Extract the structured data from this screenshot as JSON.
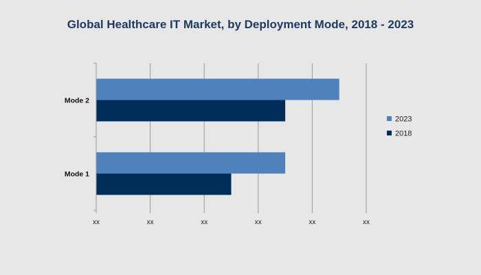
{
  "chart_data": {
    "type": "bar",
    "orientation": "horizontal",
    "title": "Global Healthcare IT Market, by Deployment Mode, 2018 - 2023",
    "categories": [
      "Mode 2",
      "Mode 1"
    ],
    "series": [
      {
        "name": "2023",
        "color": "#4f81bd",
        "values": [
          4.5,
          3.5
        ]
      },
      {
        "name": "2018",
        "color": "#002d5a",
        "values": [
          3.5,
          2.5
        ]
      }
    ],
    "x_ticks": [
      0,
      1,
      2,
      3,
      4,
      5
    ],
    "x_tick_labels": [
      "xx",
      "xx",
      "xx",
      "xx",
      "xx",
      "xx"
    ],
    "xlim": [
      0,
      5
    ],
    "grid": true,
    "legend_position": "right",
    "legend_order": [
      "2023",
      "2018"
    ],
    "xlabel": "",
    "ylabel": ""
  }
}
